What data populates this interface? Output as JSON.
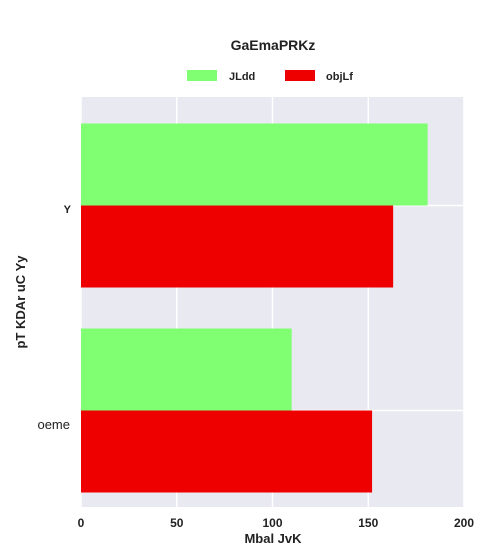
{
  "chart_data": {
    "type": "bar",
    "orientation": "horizontal",
    "title": "GaEmaPRKz",
    "xlabel": "Mbal JvK",
    "ylabel": "pT KDAr uC Yy",
    "categories": [
      "Y",
      "oeme"
    ],
    "series": [
      {
        "name": "JLdd",
        "color": "#80ff73",
        "values": [
          181,
          110
        ]
      },
      {
        "name": "objLf",
        "color": "#ee0000",
        "values": [
          163,
          152
        ]
      }
    ],
    "xlim": [
      0,
      200
    ],
    "xticks": [
      "0",
      "50",
      "100",
      "150",
      "200"
    ],
    "grid": true,
    "legend_position": "top-center",
    "background": "#e9e9f1"
  }
}
